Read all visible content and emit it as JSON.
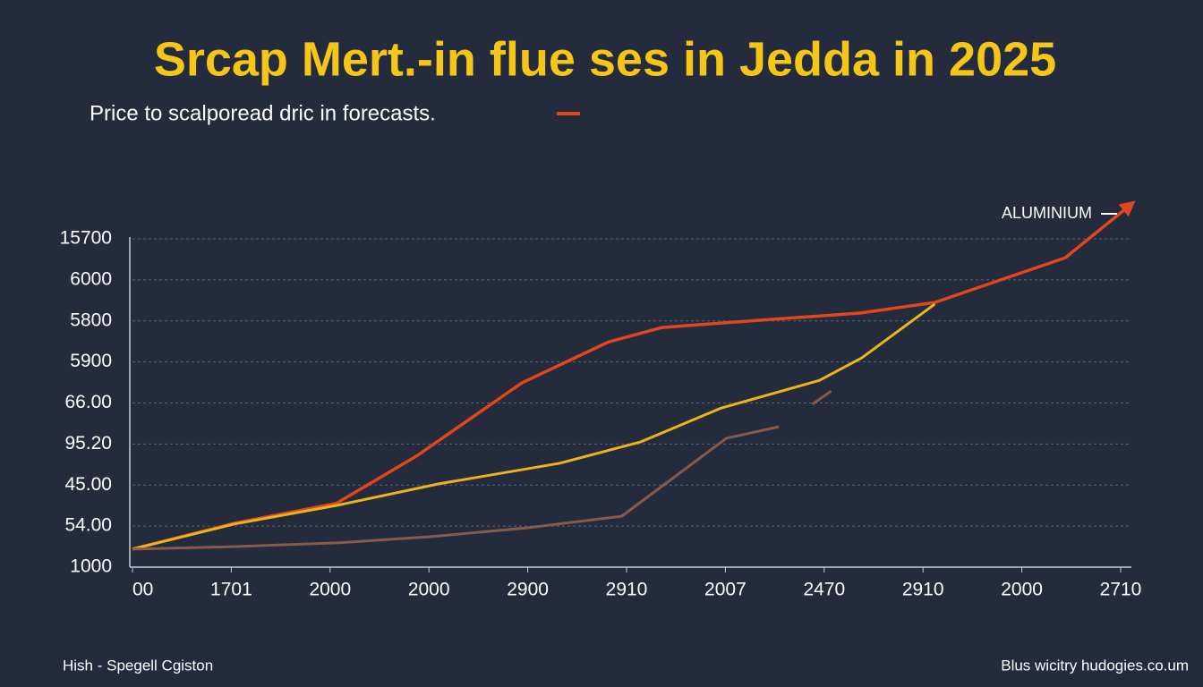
{
  "chart_data": {
    "type": "line",
    "title": "Srcap Mert.-in flue ses in Jedda  in 2025",
    "subtitle": "Price to scalporead dric in forecasts.",
    "footer_left": "Hish - Spegell Cgiston",
    "footer_right": "Blus wicitry hudogies.co.um",
    "xlim": [
      0,
      10
    ],
    "xticks": [
      {
        "value": 0,
        "label": "00"
      },
      {
        "value": 1,
        "label": "1701"
      },
      {
        "value": 2,
        "label": "2000"
      },
      {
        "value": 3,
        "label": "2000"
      },
      {
        "value": 4,
        "label": "2900"
      },
      {
        "value": 5,
        "label": "2910"
      },
      {
        "value": 6,
        "label": "2007"
      },
      {
        "value": 7,
        "label": "2470"
      },
      {
        "value": 8,
        "label": "2910"
      },
      {
        "value": 9,
        "label": "2000"
      },
      {
        "value": 10,
        "label": "2710"
      }
    ],
    "ylim": [
      0,
      8
    ],
    "yticks": [
      {
        "value": 0,
        "label": "1000"
      },
      {
        "value": 1,
        "label": "54.00"
      },
      {
        "value": 2,
        "label": "45.00"
      },
      {
        "value": 3,
        "label": "95.20"
      },
      {
        "value": 4,
        "label": "66.00"
      },
      {
        "value": 5,
        "label": "5900"
      },
      {
        "value": 6,
        "label": "5800"
      },
      {
        "value": 7,
        "label": "6000"
      },
      {
        "value": 8,
        "label": "15700"
      }
    ],
    "grid": true,
    "series": [
      {
        "name": "ALUMINIUM",
        "color": "#e2461c",
        "x": [
          0,
          1.03,
          2.06,
          2.87,
          3.94,
          4.82,
          5.36,
          6.36,
          7.36,
          8.12,
          9.44,
          10.09
        ],
        "values": [
          0.44,
          1.07,
          1.55,
          2.7,
          4.49,
          5.49,
          5.84,
          6.02,
          6.19,
          6.45,
          7.54,
          8.81
        ]
      },
      {
        "color": "#e8b51c",
        "x": [
          0,
          1.03,
          2.06,
          3.1,
          4.32,
          5.14,
          5.95,
          6.95,
          7.38,
          8.12
        ],
        "values": [
          0.44,
          1.05,
          1.5,
          2.03,
          2.53,
          3.05,
          3.87,
          4.55,
          5.1,
          6.41
        ]
      },
      {
        "color": "#8a5a48",
        "x": [
          0,
          1.03,
          2.06,
          3.01,
          4.0,
          4.95,
          6.01,
          6.54
        ],
        "values": [
          0.44,
          0.5,
          0.59,
          0.74,
          0.96,
          1.24,
          3.14,
          3.42
        ]
      },
      {
        "color": "#8a5a48",
        "x": [
          6.88,
          7.07
        ],
        "values": [
          3.97,
          4.29
        ]
      }
    ]
  }
}
